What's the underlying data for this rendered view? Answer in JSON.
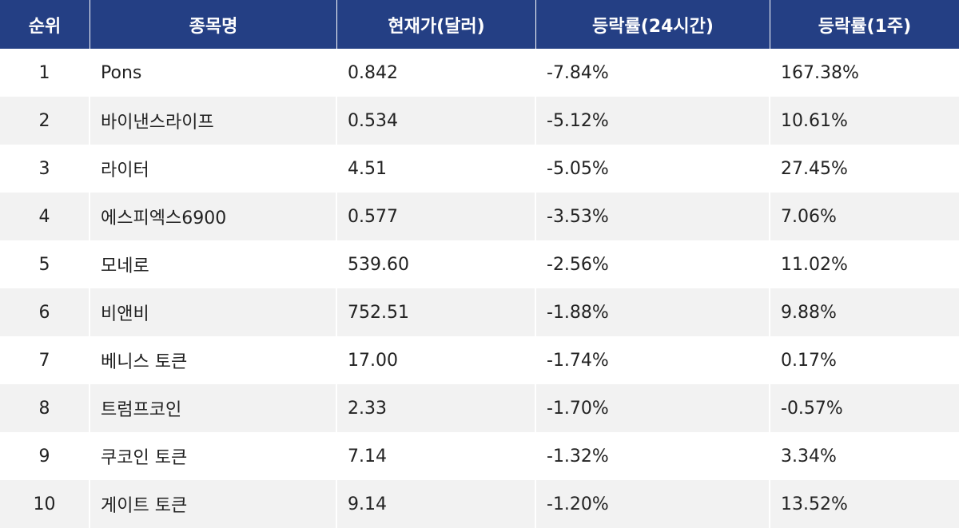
{
  "table": {
    "headers": [
      "순위",
      "종목명",
      "현재가(달러)",
      "등락률(24시간)",
      "등락률(1주)"
    ],
    "rows": [
      [
        "1",
        "Pons",
        "0.842",
        "-7.84%",
        "167.38%"
      ],
      [
        "2",
        "바이낸스라이프",
        "0.534",
        "-5.12%",
        "10.61%"
      ],
      [
        "3",
        "라이터",
        "4.51",
        "-5.05%",
        "27.45%"
      ],
      [
        "4",
        "에스피엑스6900",
        "0.577",
        "-3.53%",
        "7.06%"
      ],
      [
        "5",
        "모네로",
        "539.60",
        "-2.56%",
        "11.02%"
      ],
      [
        "6",
        "비앤비",
        "752.51",
        "-1.88%",
        "9.88%"
      ],
      [
        "7",
        "베니스 토큰",
        "17.00",
        "-1.74%",
        "0.17%"
      ],
      [
        "8",
        "트럼프코인",
        "2.33",
        "-1.70%",
        "-0.57%"
      ],
      [
        "9",
        "쿠코인 토큰",
        "7.14",
        "-1.32%",
        "3.34%"
      ],
      [
        "10",
        "게이트 토큰",
        "9.14",
        "-1.20%",
        "13.52%"
      ]
    ]
  },
  "colors": {
    "header_bg": "#243f84",
    "header_text": "#ffffff",
    "row_alt_bg": "#f2f2f2",
    "row_bg": "#ffffff"
  }
}
